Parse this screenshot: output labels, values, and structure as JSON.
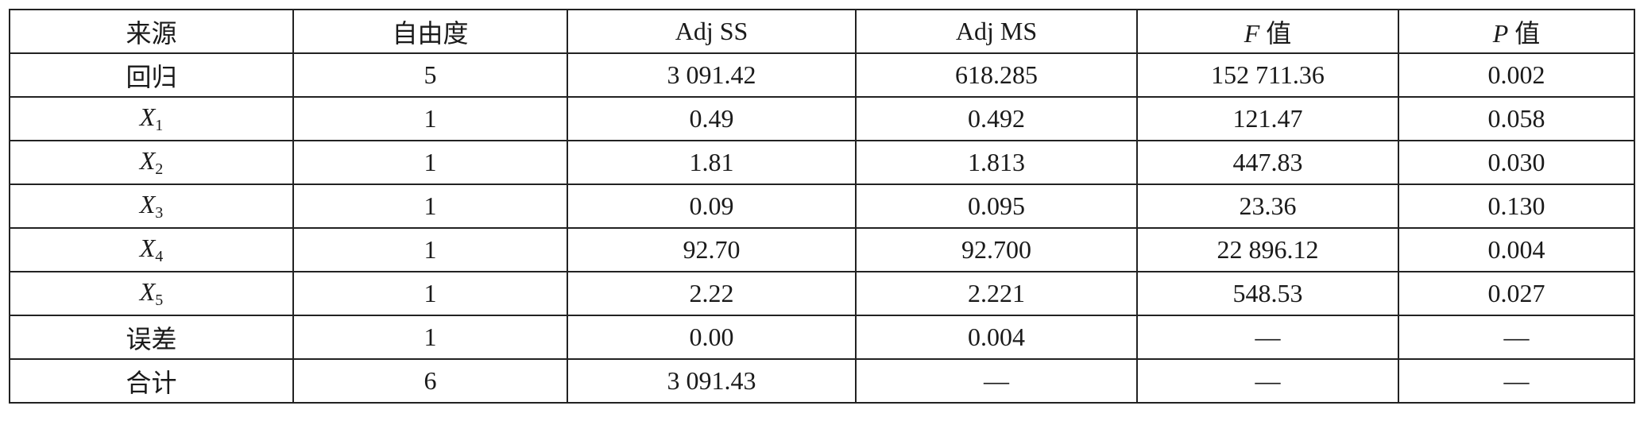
{
  "table": {
    "header": [
      "来源",
      "自由度",
      "Adj SS",
      "Adj MS",
      {
        "italic": "F",
        "text": "值"
      },
      {
        "italic": "P",
        "text": "值"
      }
    ],
    "rows": [
      [
        "回归",
        "5",
        "3 091.42",
        "618.285",
        "152 711.36",
        "0.002"
      ],
      [
        {
          "main": "X",
          "sub": "1"
        },
        "1",
        "0.49",
        "0.492",
        "121.47",
        "0.058"
      ],
      [
        {
          "main": "X",
          "sub": "2"
        },
        "1",
        "1.81",
        "1.813",
        "447.83",
        "0.030"
      ],
      [
        {
          "main": "X",
          "sub": "3"
        },
        "1",
        "0.09",
        "0.095",
        "23.36",
        "0.130"
      ],
      [
        {
          "main": "X",
          "sub": "4"
        },
        "1",
        "92.70",
        "92.700",
        "22 896.12",
        "0.004"
      ],
      [
        {
          "main": "X",
          "sub": "5"
        },
        "1",
        "2.22",
        "2.221",
        "548.53",
        "0.027"
      ],
      [
        "误差",
        "1",
        "0.00",
        "0.004",
        "—",
        "—"
      ],
      [
        "合计",
        "6",
        "3 091.43",
        "—",
        "—",
        "—"
      ]
    ]
  }
}
